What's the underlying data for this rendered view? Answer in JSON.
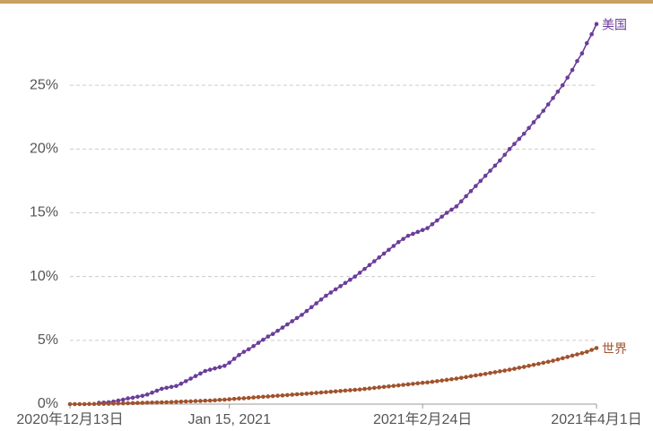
{
  "chart_data": {
    "type": "line",
    "x": [
      "2020-12-13",
      "2020-12-14",
      "2020-12-15",
      "2020-12-16",
      "2020-12-17",
      "2020-12-18",
      "2020-12-19",
      "2020-12-20",
      "2020-12-21",
      "2020-12-22",
      "2020-12-23",
      "2020-12-24",
      "2020-12-25",
      "2020-12-26",
      "2020-12-27",
      "2020-12-28",
      "2020-12-29",
      "2020-12-30",
      "2020-12-31",
      "2021-01-01",
      "2021-01-02",
      "2021-01-03",
      "2021-01-04",
      "2021-01-05",
      "2021-01-06",
      "2021-01-07",
      "2021-01-08",
      "2021-01-09",
      "2021-01-10",
      "2021-01-11",
      "2021-01-12",
      "2021-01-13",
      "2021-01-14",
      "2021-01-15",
      "2021-01-16",
      "2021-01-17",
      "2021-01-18",
      "2021-01-19",
      "2021-01-20",
      "2021-01-21",
      "2021-01-22",
      "2021-01-23",
      "2021-01-24",
      "2021-01-25",
      "2021-01-26",
      "2021-01-27",
      "2021-01-28",
      "2021-01-29",
      "2021-01-30",
      "2021-01-31",
      "2021-02-01",
      "2021-02-02",
      "2021-02-03",
      "2021-02-04",
      "2021-02-05",
      "2021-02-06",
      "2021-02-07",
      "2021-02-08",
      "2021-02-09",
      "2021-02-10",
      "2021-02-11",
      "2021-02-12",
      "2021-02-13",
      "2021-02-14",
      "2021-02-15",
      "2021-02-16",
      "2021-02-17",
      "2021-02-18",
      "2021-02-19",
      "2021-02-20",
      "2021-02-21",
      "2021-02-22",
      "2021-02-23",
      "2021-02-24",
      "2021-02-25",
      "2021-02-26",
      "2021-02-27",
      "2021-02-28",
      "2021-03-01",
      "2021-03-02",
      "2021-03-03",
      "2021-03-04",
      "2021-03-05",
      "2021-03-06",
      "2021-03-07",
      "2021-03-08",
      "2021-03-09",
      "2021-03-10",
      "2021-03-11",
      "2021-03-12",
      "2021-03-13",
      "2021-03-14",
      "2021-03-15",
      "2021-03-16",
      "2021-03-17",
      "2021-03-18",
      "2021-03-19",
      "2021-03-20",
      "2021-03-21",
      "2021-03-22",
      "2021-03-23",
      "2021-03-24",
      "2021-03-25",
      "2021-03-26",
      "2021-03-27",
      "2021-03-28",
      "2021-03-29",
      "2021-03-30",
      "2021-03-31",
      "2021-04-01"
    ],
    "series": [
      {
        "name": "美国",
        "color": "#6a3d9a",
        "values": [
          null,
          null,
          null,
          null,
          null,
          null,
          0.1,
          0.12,
          0.15,
          0.2,
          0.28,
          0.35,
          0.45,
          0.5,
          0.58,
          0.65,
          0.75,
          0.9,
          1.05,
          1.2,
          1.28,
          1.35,
          1.42,
          1.6,
          1.8,
          2.0,
          2.2,
          2.4,
          2.6,
          2.7,
          2.8,
          2.9,
          3.0,
          3.25,
          3.55,
          3.85,
          4.1,
          4.3,
          4.55,
          4.8,
          5.05,
          5.3,
          5.5,
          5.75,
          6.0,
          6.25,
          6.5,
          6.75,
          7.0,
          7.3,
          7.6,
          7.9,
          8.2,
          8.5,
          8.75,
          9.0,
          9.25,
          9.5,
          9.75,
          10.0,
          10.3,
          10.6,
          10.9,
          11.2,
          11.5,
          11.8,
          12.1,
          12.4,
          12.7,
          12.95,
          13.2,
          13.35,
          13.5,
          13.65,
          13.8,
          14.1,
          14.4,
          14.7,
          15.0,
          15.25,
          15.5,
          15.9,
          16.3,
          16.7,
          17.1,
          17.5,
          17.9,
          18.3,
          18.7,
          19.1,
          19.55,
          20.0,
          20.4,
          20.8,
          21.2,
          21.65,
          22.1,
          22.55,
          23.0,
          23.5,
          24.0,
          24.5,
          25.0,
          25.6,
          26.2,
          26.9,
          27.5,
          28.3,
          29.0,
          29.8
        ]
      },
      {
        "name": "世界",
        "color": "#a0522d",
        "values": [
          0,
          0,
          0,
          0,
          0.01,
          0.01,
          0.02,
          0.02,
          0.03,
          0.04,
          0.05,
          0.06,
          0.07,
          0.08,
          0.09,
          0.1,
          0.11,
          0.12,
          0.13,
          0.14,
          0.15,
          0.16,
          0.18,
          0.19,
          0.21,
          0.22,
          0.24,
          0.25,
          0.27,
          0.28,
          0.3,
          0.33,
          0.35,
          0.38,
          0.41,
          0.44,
          0.46,
          0.49,
          0.52,
          0.55,
          0.58,
          0.6,
          0.63,
          0.66,
          0.68,
          0.71,
          0.74,
          0.77,
          0.79,
          0.82,
          0.85,
          0.88,
          0.91,
          0.94,
          0.97,
          1.0,
          1.03,
          1.06,
          1.09,
          1.12,
          1.15,
          1.19,
          1.23,
          1.27,
          1.31,
          1.35,
          1.39,
          1.43,
          1.47,
          1.51,
          1.55,
          1.59,
          1.63,
          1.67,
          1.7,
          1.75,
          1.8,
          1.85,
          1.9,
          1.95,
          2.0,
          2.06,
          2.12,
          2.19,
          2.25,
          2.31,
          2.37,
          2.44,
          2.5,
          2.57,
          2.63,
          2.7,
          2.77,
          2.85,
          2.92,
          3.0,
          3.08,
          3.16,
          3.24,
          3.32,
          3.4,
          3.5,
          3.6,
          3.7,
          3.8,
          3.9,
          4.0,
          4.1,
          4.25,
          4.4
        ]
      }
    ],
    "xlim": [
      "2020-12-13",
      "2021-04-01"
    ],
    "xticks": [
      {
        "value": "2020-12-13",
        "label": "2020年12月13日"
      },
      {
        "value": "2021-01-15",
        "label": "Jan 15, 2021"
      },
      {
        "value": "2021-02-24",
        "label": "2021年2月24日"
      },
      {
        "value": "2021-04-01",
        "label": "2021年4月1日"
      }
    ],
    "ylim": [
      0,
      30
    ],
    "yticks": [
      {
        "value": 0,
        "label": "0%"
      },
      {
        "value": 5,
        "label": "5%"
      },
      {
        "value": 10,
        "label": "10%"
      },
      {
        "value": 15,
        "label": "15%"
      },
      {
        "value": 20,
        "label": "20%"
      },
      {
        "value": 25,
        "label": "25%"
      }
    ],
    "grid": true
  }
}
